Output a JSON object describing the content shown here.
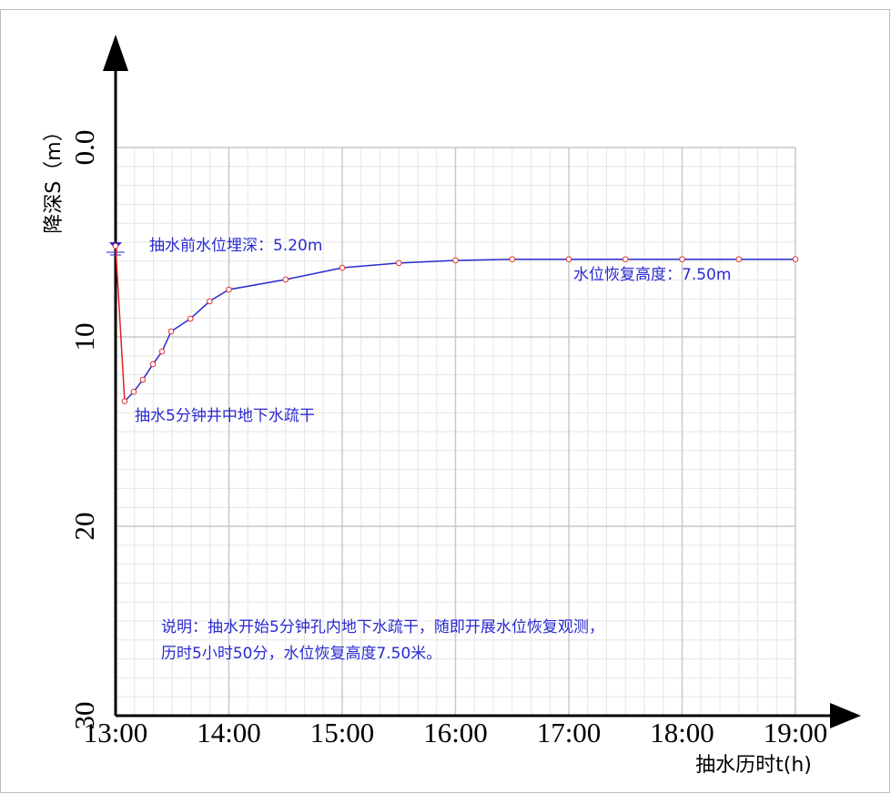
{
  "chart_data": {
    "type": "line",
    "x_label": "抽水历时t(h)",
    "y_label": "降深S（m）",
    "x": [
      13.0,
      13.08,
      13.16,
      13.24,
      13.33,
      13.41,
      13.49,
      13.66,
      13.83,
      14.0,
      14.5,
      15.0,
      15.5,
      16.0,
      16.5,
      17.0,
      17.5,
      18.0,
      18.5,
      19.0
    ],
    "series": [
      {
        "name": "降深",
        "color": "#2a2ad0",
        "marker_color": "#e03030",
        "values": [
          5.2,
          13.4,
          12.9,
          12.26,
          11.44,
          10.77,
          9.71,
          9.04,
          8.12,
          7.5,
          6.97,
          6.35,
          6.1,
          5.96,
          5.9,
          5.9,
          5.9,
          5.9,
          5.9,
          5.9
        ]
      }
    ],
    "drop_segment_color": "#e02020",
    "xlim": [
      13,
      19
    ],
    "xticks": [
      {
        "value": 13,
        "label": "13:00"
      },
      {
        "value": 14,
        "label": "14:00"
      },
      {
        "value": 15,
        "label": "15:00"
      },
      {
        "value": 16,
        "label": "16:00"
      },
      {
        "value": 17,
        "label": "17:00"
      },
      {
        "value": 18,
        "label": "18:00"
      },
      {
        "value": 19,
        "label": "19:00"
      }
    ],
    "ylim": [
      0,
      30
    ],
    "y_inverted": true,
    "yticks": [
      {
        "value": 0,
        "label": "0.0"
      },
      10,
      20,
      30
    ],
    "grid": true,
    "annotations": [
      "抽水前水位埋深：5.20m",
      "水位恢复高度：7.50m",
      "抽水5分钟井中地下水疏干",
      "说明：抽水开始5分钟孔内地下水疏干，随即开展水位恢复观测，",
      "历时5小时50分，水位恢复高度7.50米。"
    ]
  }
}
